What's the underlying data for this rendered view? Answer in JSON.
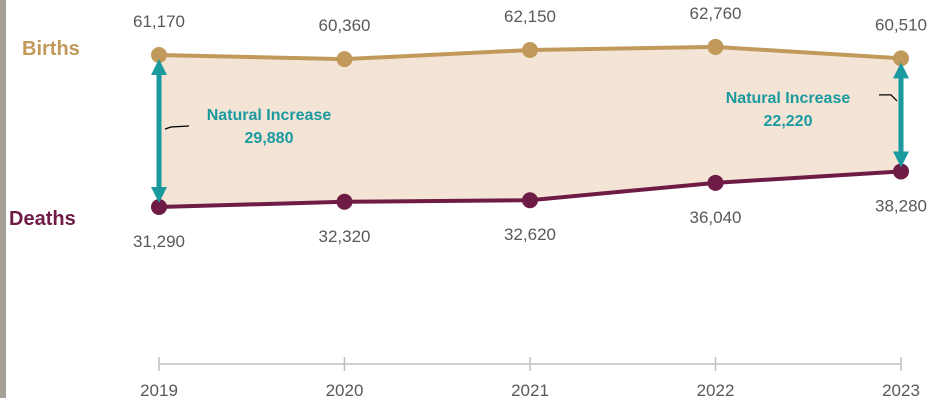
{
  "chart_data": {
    "type": "line",
    "x": [
      "2019",
      "2020",
      "2021",
      "2022",
      "2023"
    ],
    "series": [
      {
        "name": "Births",
        "values": [
          61170,
          60360,
          62150,
          62760,
          60510
        ],
        "labels": [
          "61,170",
          "60,360",
          "62,150",
          "62,760",
          "60,510"
        ]
      },
      {
        "name": "Deaths",
        "values": [
          31290,
          32320,
          32620,
          36040,
          38280
        ],
        "labels": [
          "31,290",
          "32,320",
          "32,620",
          "36,040",
          "38,280"
        ]
      }
    ],
    "annotations": [
      {
        "year": "2019",
        "title": "Natural Increase",
        "value": "29,880"
      },
      {
        "year": "2023",
        "title": "Natural Increase",
        "value": "22,220"
      }
    ],
    "colors": {
      "births": "#C19A5B",
      "deaths": "#6E1B46",
      "fill": "#F3E4D6",
      "arrow": "#1A9A9F",
      "axis": "#BFBFBF",
      "frame": "#A59F97"
    },
    "grid": false,
    "legend": "series labels at left"
  }
}
